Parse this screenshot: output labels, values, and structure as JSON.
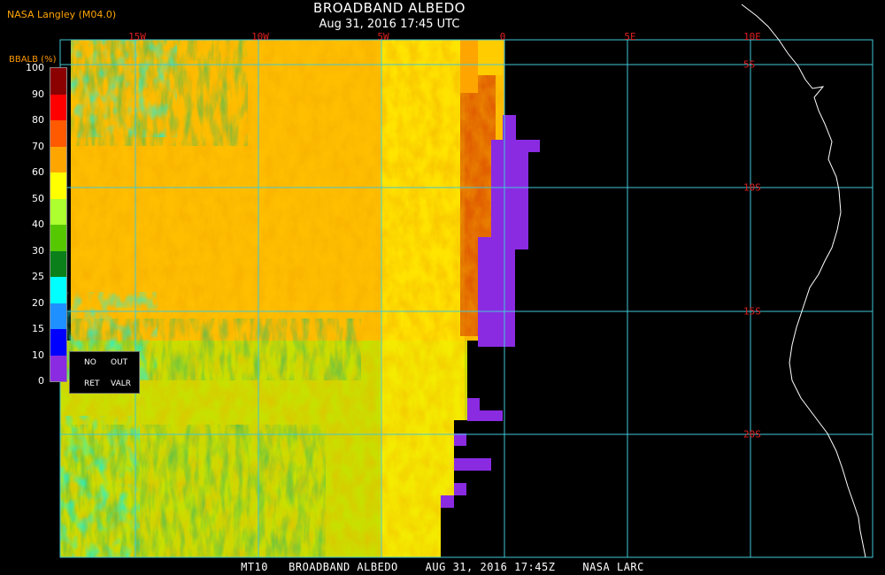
{
  "header": {
    "title": "BROADBAND ALBEDO",
    "date": "Aug 31, 2016 17:45 UTC",
    "producer": "NASA Langley (M04.0)"
  },
  "footer": {
    "text": "MT10   BROADBAND ALBEDO    AUG 31, 2016 17:45Z    NASA LARC"
  },
  "map": {
    "longitude_labels": [
      "15W",
      "10W",
      "5W",
      "0",
      "5E",
      "10E"
    ],
    "latitude_labels": [
      "5S",
      "10S",
      "15S",
      "20S"
    ],
    "grid_color": "#40c8d8",
    "coastline_color": "#ffffff",
    "label_color": "#e02020"
  },
  "legend": {
    "title": "BBALB (%)",
    "ticks": [
      "100",
      "90",
      "80",
      "70",
      "60",
      "50",
      "40",
      "30",
      "25",
      "20",
      "15",
      "10",
      "0"
    ],
    "colors": [
      "#8b0000",
      "#ff0000",
      "#ff5a00",
      "#ffa500",
      "#ffff00",
      "#adff2f",
      "#56c800",
      "#0a7f1a",
      "#00ffff",
      "#1e90ff",
      "#0000ff",
      "#8a2be2"
    ],
    "box_labels": {
      "no": "NO",
      "out": "OUT",
      "ret": "RET",
      "valr": "VALR"
    }
  }
}
